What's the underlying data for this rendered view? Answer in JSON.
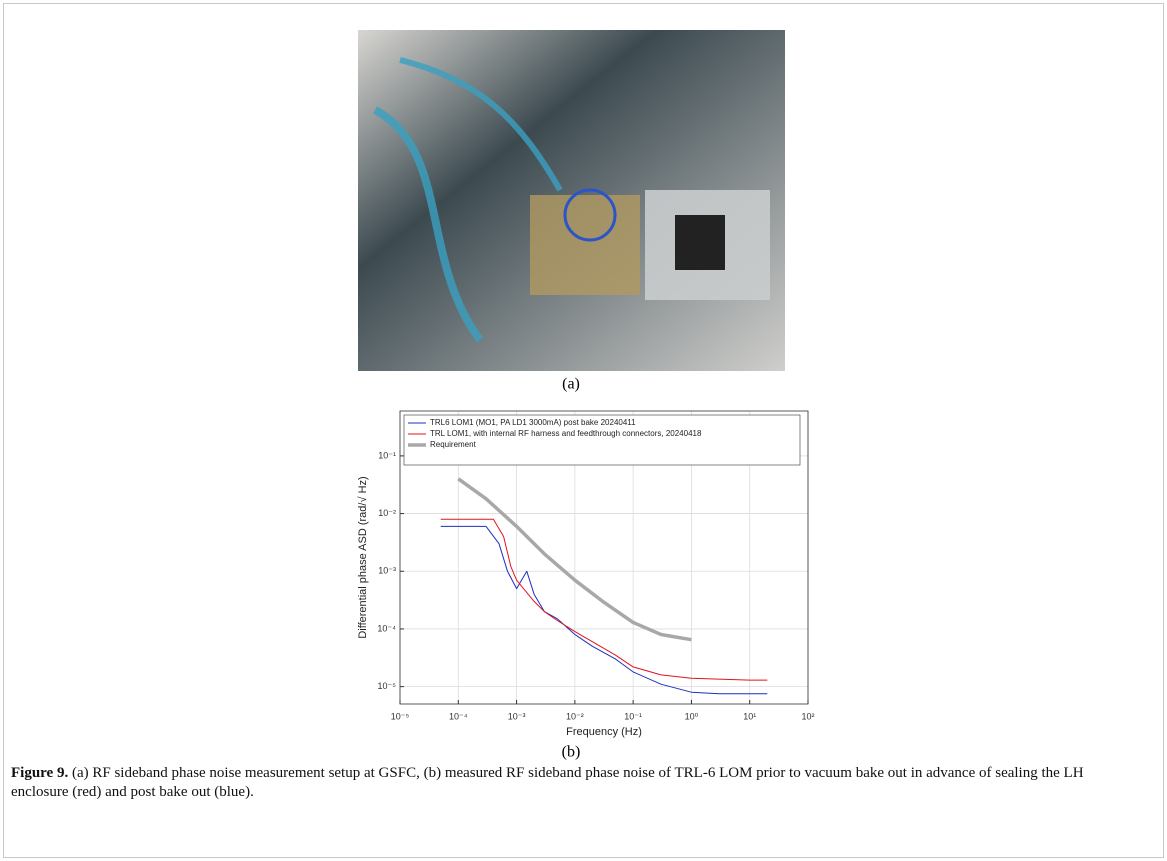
{
  "figure": {
    "panel_a": "(a)",
    "panel_b": "(b)",
    "caption": {
      "label": "Figure 9.",
      "text": "(a) RF sideband phase noise measurement setup at GSFC, (b) measured RF sideband phase noise of TRL-6 LOM prior to vacuum bake out in advance of sealing the LH enclosure (red) and post bake out (blue)."
    }
  },
  "chart_data": {
    "type": "line",
    "x_label": "Frequency (Hz)",
    "y_label": "Differential phase ASD (rad/√ Hz)",
    "xscale": "log",
    "yscale": "log",
    "grid": true,
    "legend": "upper-left",
    "xlim": [
      1e-05,
      100
    ],
    "ylim": [
      5e-06,
      0.6
    ],
    "xticks": [
      {
        "value": 1e-05,
        "label": "10⁻⁵"
      },
      {
        "value": 0.0001,
        "label": "10⁻⁴"
      },
      {
        "value": 0.001,
        "label": "10⁻³"
      },
      {
        "value": 0.01,
        "label": "10⁻²"
      },
      {
        "value": 0.1,
        "label": "10⁻¹"
      },
      {
        "value": 1,
        "label": "10⁰"
      },
      {
        "value": 10,
        "label": "10¹"
      },
      {
        "value": 100,
        "label": "10²"
      }
    ],
    "yticks": [
      {
        "value": 1e-05,
        "label": "10⁻⁵"
      },
      {
        "value": 0.0001,
        "label": "10⁻⁴"
      },
      {
        "value": 0.001,
        "label": "10⁻³"
      },
      {
        "value": 0.01,
        "label": "10⁻²"
      },
      {
        "value": 0.1,
        "label": "10⁻¹"
      }
    ],
    "series": [
      {
        "name": "TRL6 LOM1 (MO1, PA LD1 3000mA) post bake 20240411",
        "color": "#1f2fbf",
        "width": 1,
        "x": [
          5e-05,
          0.0003,
          0.0005,
          0.0007,
          0.001,
          0.0015,
          0.002,
          0.003,
          0.005,
          0.01,
          0.02,
          0.05,
          0.1,
          0.3,
          1,
          3,
          10,
          20
        ],
        "values": [
          0.006,
          0.006,
          0.003,
          0.001,
          0.0005,
          0.001,
          0.0004,
          0.0002,
          0.00015,
          8e-05,
          5e-05,
          3e-05,
          1.8e-05,
          1.1e-05,
          8e-06,
          7.5e-06,
          7.5e-06,
          7.5e-06
        ]
      },
      {
        "name": "TRL LOM1, with internal RF harness and feedthrough connectors, 20240418",
        "color": "#e0141e",
        "width": 1,
        "x": [
          5e-05,
          0.0004,
          0.0006,
          0.0008,
          0.001,
          0.002,
          0.003,
          0.005,
          0.01,
          0.02,
          0.05,
          0.1,
          0.3,
          1,
          10,
          20
        ],
        "values": [
          0.008,
          0.008,
          0.004,
          0.0012,
          0.0007,
          0.0003,
          0.0002,
          0.00014,
          9e-05,
          6e-05,
          3.5e-05,
          2.2e-05,
          1.6e-05,
          1.4e-05,
          1.3e-05,
          1.3e-05
        ]
      },
      {
        "name": "Requirement",
        "color": "#a8a8a8",
        "width": 3.5,
        "x": [
          0.0001,
          0.0003,
          0.001,
          0.003,
          0.01,
          0.03,
          0.1,
          0.3,
          1
        ],
        "values": [
          0.04,
          0.018,
          0.006,
          0.002,
          0.0007,
          0.0003,
          0.00013,
          8e-05,
          6.5e-05
        ]
      }
    ]
  }
}
